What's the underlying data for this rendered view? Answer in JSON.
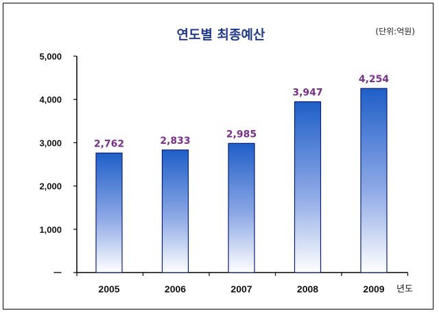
{
  "chart_data": {
    "type": "bar",
    "title": "연도별 최종예산",
    "unit_note": "(단위:억원)",
    "xlabel": "년도",
    "ylabel": "",
    "categories": [
      "2005",
      "2006",
      "2007",
      "2008",
      "2009"
    ],
    "values": [
      2762,
      2833,
      2985,
      3947,
      4254
    ],
    "data_labels": [
      "2,762",
      "2,833",
      "2,985",
      "3,947",
      "4,254"
    ],
    "yticks": [
      "ㅡ",
      "1,000",
      "2,000",
      "3,000",
      "4,000",
      "5,000"
    ],
    "ylim": [
      0,
      5000
    ],
    "grid": false,
    "legend": "none",
    "colors": {
      "bar_top": "#1f5fc8",
      "bar_bottom": "#ffffff",
      "bar_stroke": "#0a1f6e",
      "data_label": "#7a2f88",
      "title": "#1f3a8a"
    }
  }
}
